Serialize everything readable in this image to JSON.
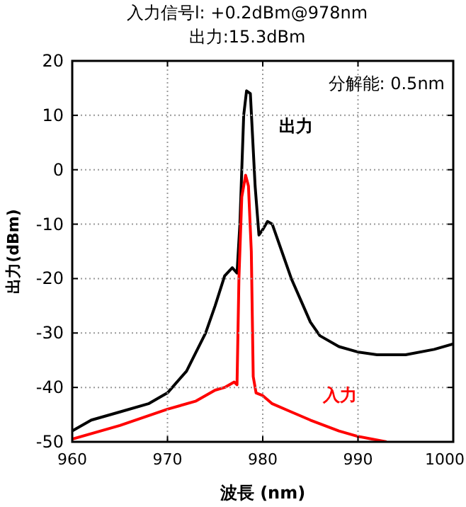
{
  "chart_data": {
    "type": "line",
    "title": "入力信号l: +0.2dBm@978nm",
    "subtitle": "出力:15.3dBm",
    "xlabel": "波長 (nm)",
    "ylabel": "出力(dBm)",
    "annotations": [
      "分解能: 0.5nm"
    ],
    "xlim": [
      960,
      1000
    ],
    "xticks": [
      960,
      970,
      980,
      990,
      1000
    ],
    "ylim": [
      -50,
      20
    ],
    "yticks": [
      -50,
      -40,
      -30,
      -20,
      -10,
      0,
      10,
      20
    ],
    "grid": true,
    "line_style": "solid",
    "series": [
      {
        "name": "出力",
        "color": "#000000",
        "x": [
          960,
          962,
          965,
          968,
          970,
          972,
          974,
          975,
          976,
          976.8,
          977.3,
          977.6,
          978,
          978.3,
          978.7,
          979.2,
          979.6,
          980,
          980.5,
          981,
          982,
          983,
          984,
          985,
          986,
          988,
          990,
          992,
          995,
          998,
          1000
        ],
        "values": [
          -48,
          -46,
          -44.5,
          -43,
          -41,
          -37,
          -30,
          -25,
          -19.5,
          -18,
          -19,
          -10,
          10,
          14.5,
          14,
          -3,
          -12,
          -11,
          -9.5,
          -10,
          -15,
          -20,
          -24,
          -28,
          -30.5,
          -32.5,
          -33.5,
          -34,
          -34,
          -33,
          -32
        ]
      },
      {
        "name": "入力",
        "color": "#ff0000",
        "x": [
          960,
          965,
          970,
          973,
          975,
          976,
          977,
          977.3,
          977.5,
          977.8,
          978.2,
          978.5,
          978.8,
          979,
          979.3,
          980,
          981,
          983,
          985,
          988,
          990,
          993
        ],
        "values": [
          -49.5,
          -47,
          -44,
          -42.5,
          -40.5,
          -40,
          -39,
          -39.5,
          -20,
          -5,
          -1,
          -3,
          -15,
          -38,
          -41,
          -41.5,
          -43,
          -44.5,
          -46,
          -48,
          -49,
          -50
        ]
      }
    ]
  }
}
